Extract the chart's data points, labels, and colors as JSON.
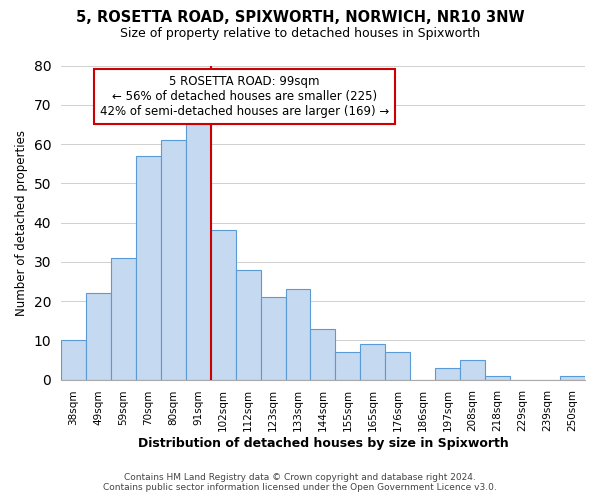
{
  "title": "5, ROSETTA ROAD, SPIXWORTH, NORWICH, NR10 3NW",
  "subtitle": "Size of property relative to detached houses in Spixworth",
  "xlabel": "Distribution of detached houses by size in Spixworth",
  "ylabel": "Number of detached properties",
  "bar_labels": [
    "38sqm",
    "49sqm",
    "59sqm",
    "70sqm",
    "80sqm",
    "91sqm",
    "102sqm",
    "112sqm",
    "123sqm",
    "133sqm",
    "144sqm",
    "155sqm",
    "165sqm",
    "176sqm",
    "186sqm",
    "197sqm",
    "208sqm",
    "218sqm",
    "229sqm",
    "239sqm",
    "250sqm"
  ],
  "bar_heights": [
    10,
    22,
    31,
    57,
    61,
    65,
    38,
    28,
    21,
    23,
    13,
    7,
    9,
    7,
    0,
    3,
    5,
    1,
    0,
    0,
    1
  ],
  "bar_color": "#c5d9f0",
  "bar_edge_color": "#5b9bd5",
  "vline_after_bar": 5,
  "vline_color": "#cc0000",
  "ylim": [
    0,
    80
  ],
  "annotation_text_line1": "5 ROSETTA ROAD: 99sqm",
  "annotation_text_line2": "← 56% of detached houses are smaller (225)",
  "annotation_text_line3": "42% of semi-detached houses are larger (169) →",
  "annotation_box_color": "#ffffff",
  "annotation_box_edge_color": "#cc0000",
  "footer_line1": "Contains HM Land Registry data © Crown copyright and database right 2024.",
  "footer_line2": "Contains public sector information licensed under the Open Government Licence v3.0.",
  "background_color": "#ffffff",
  "grid_color": "#d0d0d0"
}
